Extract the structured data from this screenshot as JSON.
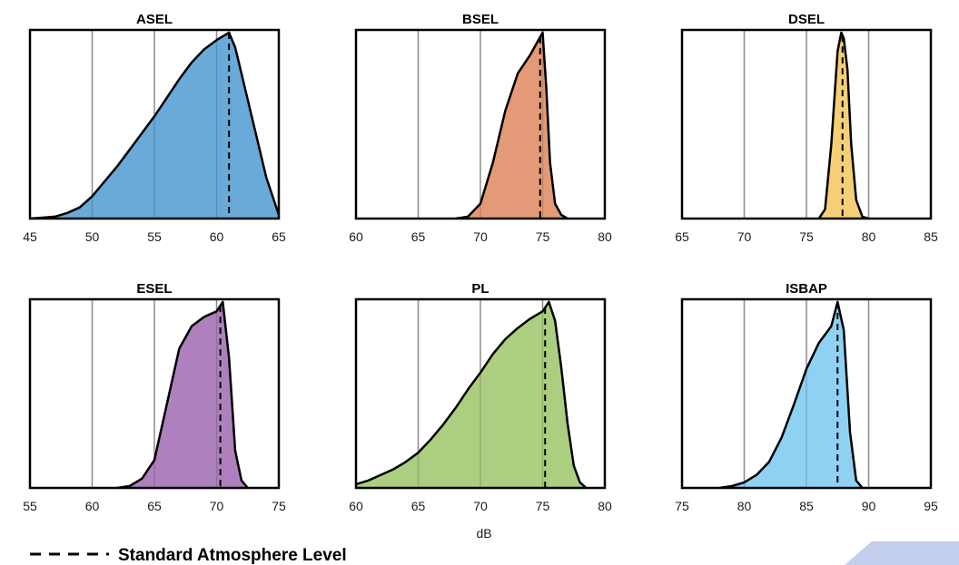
{
  "xlabel": "dB",
  "legend": {
    "label": "Standard Atmosphere Level",
    "line_style": "dashed",
    "placement": "bottom-left"
  },
  "chart_data": [
    {
      "type": "area",
      "title": "ASEL",
      "color": "#69aad8",
      "xlim": [
        45,
        65
      ],
      "xticks": [
        45,
        50,
        55,
        60,
        65
      ],
      "grid": "vertical",
      "standard_atmosphere_level": 61,
      "x": [
        45,
        46,
        47,
        48,
        49,
        50,
        51,
        52,
        53,
        54,
        55,
        56,
        57,
        58,
        59,
        60,
        60.5,
        61,
        61.5,
        62,
        63,
        64,
        65
      ],
      "y": [
        0,
        0.005,
        0.01,
        0.03,
        0.06,
        0.12,
        0.2,
        0.28,
        0.37,
        0.46,
        0.55,
        0.65,
        0.75,
        0.84,
        0.91,
        0.96,
        0.98,
        1.0,
        0.92,
        0.78,
        0.5,
        0.22,
        0.02
      ]
    },
    {
      "type": "area",
      "title": "BSEL",
      "color": "#e59a77",
      "xlim": [
        60,
        80
      ],
      "xticks": [
        60,
        65,
        70,
        75,
        80
      ],
      "grid": "vertical",
      "standard_atmosphere_level": 74.8,
      "x": [
        68,
        69,
        70,
        71,
        72,
        73,
        74,
        74.5,
        75,
        75.3,
        75.6,
        76,
        76.5,
        77
      ],
      "y": [
        0,
        0.01,
        0.08,
        0.3,
        0.58,
        0.78,
        0.88,
        0.94,
        1.0,
        0.7,
        0.3,
        0.08,
        0.02,
        0
      ]
    },
    {
      "type": "area",
      "title": "DSEL",
      "color": "#f4cf75",
      "xlim": [
        65,
        85
      ],
      "xticks": [
        65,
        70,
        75,
        80,
        85
      ],
      "grid": "vertical",
      "standard_atmosphere_level": 77.9,
      "x": [
        76,
        76.5,
        77,
        77.5,
        77.8,
        78,
        78.3,
        78.6,
        79,
        79.5,
        80
      ],
      "y": [
        0,
        0.05,
        0.4,
        0.9,
        1.0,
        0.97,
        0.8,
        0.4,
        0.1,
        0.01,
        0
      ]
    },
    {
      "type": "area",
      "title": "ESEL",
      "color": "#ae80bd",
      "xlim": [
        55,
        75
      ],
      "xticks": [
        55,
        60,
        65,
        70,
        75
      ],
      "grid": "vertical",
      "standard_atmosphere_level": 70.3,
      "x": [
        62,
        63,
        64,
        65,
        66,
        67,
        68,
        69,
        70,
        70.5,
        71,
        71.5,
        72,
        72.5
      ],
      "y": [
        0,
        0.01,
        0.05,
        0.15,
        0.45,
        0.75,
        0.87,
        0.92,
        0.95,
        1.0,
        0.7,
        0.2,
        0.04,
        0
      ]
    },
    {
      "type": "area",
      "title": "PL",
      "color": "#acce80",
      "xlim": [
        60,
        80
      ],
      "xticks": [
        60,
        65,
        70,
        75,
        80
      ],
      "grid": "vertical",
      "standard_atmosphere_level": 75.2,
      "x": [
        60,
        61,
        62,
        63,
        64,
        65,
        66,
        67,
        68,
        69,
        70,
        71,
        72,
        73,
        74,
        75,
        75.5,
        76,
        76.5,
        77,
        77.5,
        78,
        78.5
      ],
      "y": [
        0.02,
        0.04,
        0.07,
        0.1,
        0.14,
        0.19,
        0.26,
        0.34,
        0.43,
        0.53,
        0.62,
        0.72,
        0.8,
        0.86,
        0.91,
        0.95,
        1.0,
        0.9,
        0.65,
        0.35,
        0.12,
        0.03,
        0
      ]
    },
    {
      "type": "area",
      "title": "ISBAP",
      "color": "#8fd1f2",
      "xlim": [
        75,
        95
      ],
      "xticks": [
        75,
        80,
        85,
        90,
        95
      ],
      "grid": "vertical",
      "standard_atmosphere_level": 87.5,
      "x": [
        78,
        79,
        80,
        81,
        82,
        83,
        84,
        85,
        86,
        87,
        87.5,
        88,
        88.5,
        89,
        89.5
      ],
      "y": [
        0,
        0.01,
        0.03,
        0.07,
        0.14,
        0.27,
        0.45,
        0.64,
        0.78,
        0.87,
        1.0,
        0.85,
        0.3,
        0.04,
        0
      ]
    }
  ]
}
